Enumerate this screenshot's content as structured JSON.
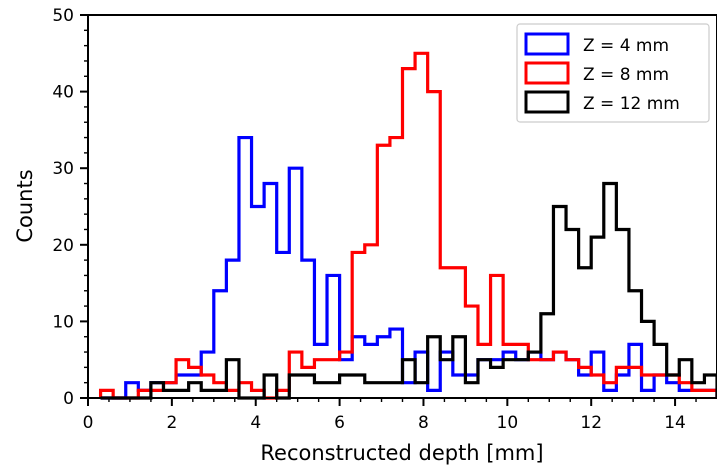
{
  "chart_data": {
    "type": "histogram",
    "xlabel": "Reconstructed depth [mm]",
    "ylabel": "Counts",
    "xlim": [
      0,
      15
    ],
    "ylim": [
      0,
      50
    ],
    "x_ticks": [
      0,
      2,
      4,
      6,
      8,
      10,
      12,
      14
    ],
    "y_ticks": [
      0,
      10,
      20,
      30,
      40,
      50
    ],
    "grid": false,
    "legend_position": "top-right",
    "bin_edges": [
      0.3,
      0.6,
      0.9,
      1.2,
      1.5,
      1.8,
      2.1,
      2.4,
      2.7,
      3.0,
      3.3,
      3.6,
      3.9,
      4.2,
      4.5,
      4.8,
      5.1,
      5.4,
      5.7,
      6.0,
      6.3,
      6.6,
      6.9,
      7.2,
      7.5,
      7.8,
      8.1,
      8.4,
      8.7,
      9.0,
      9.3,
      9.6,
      9.9,
      10.2,
      10.5,
      10.8,
      11.1,
      11.4,
      11.7,
      12.0,
      12.3,
      12.6,
      12.9,
      13.2,
      13.5,
      13.8,
      14.1,
      14.4,
      14.7,
      15.0
    ],
    "series": [
      {
        "name": "Z = 4 mm",
        "color": "#0000ff",
        "counts": [
          0,
          0,
          2,
          1,
          2,
          2,
          3,
          3,
          6,
          14,
          18,
          34,
          25,
          28,
          19,
          30,
          18,
          7,
          16,
          5,
          8,
          7,
          8,
          9,
          2,
          6,
          1,
          6,
          3,
          3,
          5,
          5,
          6,
          5,
          6,
          5,
          6,
          5,
          3,
          6,
          1,
          3,
          7,
          1,
          3,
          2,
          1,
          1,
          1
        ]
      },
      {
        "name": "Z = 8 mm",
        "color": "#ff0000",
        "counts": [
          1,
          0,
          0,
          1,
          1,
          2,
          5,
          4,
          3,
          2,
          1,
          2,
          1,
          0,
          1,
          6,
          4,
          5,
          5,
          6,
          19,
          20,
          33,
          34,
          43,
          45,
          40,
          17,
          17,
          12,
          7,
          16,
          7,
          7,
          5,
          5,
          6,
          5,
          4,
          3,
          2,
          4,
          4,
          3,
          3,
          3,
          2,
          1,
          1
        ]
      },
      {
        "name": "Z = 12 mm",
        "color": "#000000",
        "counts": [
          0,
          0,
          0,
          0,
          2,
          1,
          1,
          2,
          1,
          1,
          5,
          0,
          0,
          3,
          0,
          3,
          3,
          2,
          2,
          3,
          3,
          2,
          2,
          2,
          5,
          2,
          8,
          5,
          8,
          2,
          5,
          4,
          5,
          5,
          6,
          11,
          25,
          22,
          17,
          21,
          28,
          22,
          14,
          10,
          7,
          3,
          5,
          2,
          3
        ]
      }
    ]
  }
}
